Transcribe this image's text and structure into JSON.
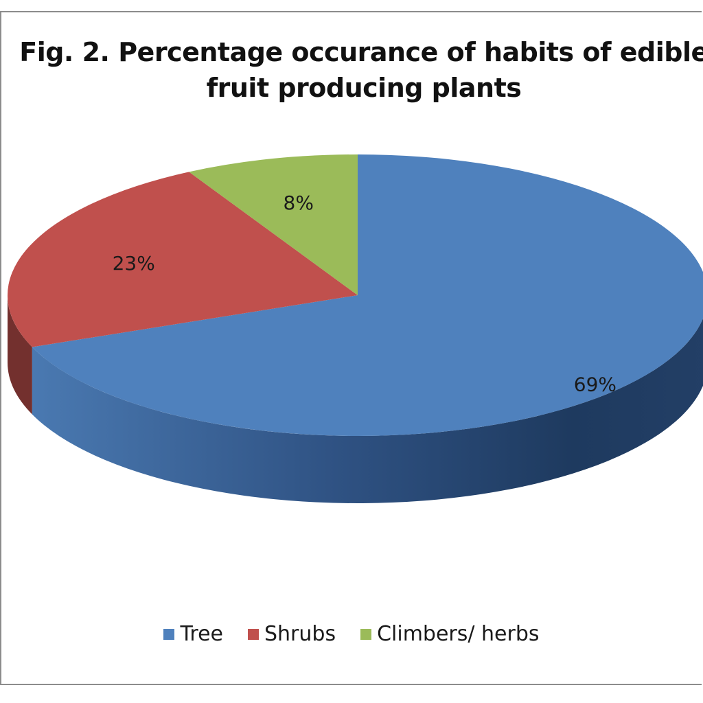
{
  "chart_data": {
    "type": "pie",
    "title": "Fig. 2. Percentage occurance of habits of edible fruit producing plants",
    "categories": [
      "Tree",
      "Shrubs",
      "Climbers/ herbs"
    ],
    "values": [
      69,
      23,
      8
    ],
    "data_labels": [
      "69%",
      "23%",
      "8%"
    ],
    "colors": [
      "#4F81BD",
      "#C0504D",
      "#9BBB59"
    ],
    "legend_position": "bottom",
    "style": "3d-pie"
  },
  "legend": {
    "items": [
      {
        "label": "Tree",
        "color": "#4F81BD"
      },
      {
        "label": "Shrubs",
        "color": "#C0504D"
      },
      {
        "label": "Climbers/ herbs",
        "color": "#9BBB59"
      }
    ]
  }
}
